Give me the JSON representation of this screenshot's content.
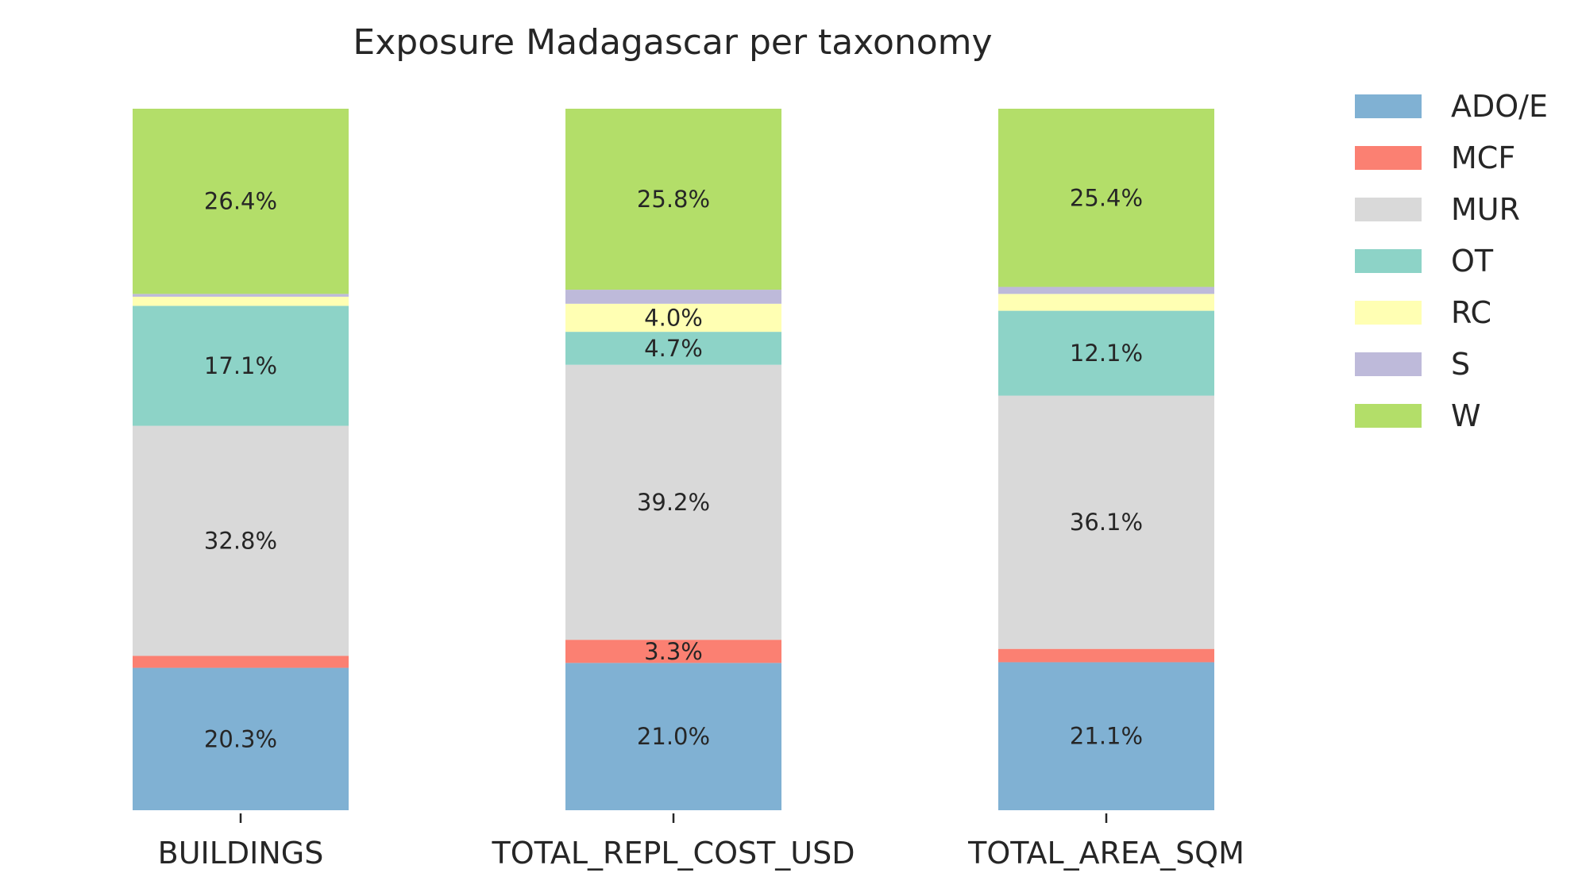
{
  "chart_data": {
    "type": "bar",
    "stacked": true,
    "normalized": true,
    "title": "Exposure Madagascar per taxonomy",
    "xlabel": "",
    "ylabel": "",
    "ylim": [
      0,
      100
    ],
    "grid": false,
    "legend_position": "right",
    "categories": [
      "BUILDINGS",
      "TOTAL_REPL_COST_USD",
      "TOTAL_AREA_SQM"
    ],
    "series": [
      {
        "name": "ADO/E",
        "color": "#80b1d3",
        "values": [
          20.3,
          21.0,
          21.1
        ],
        "labels": [
          "20.3%",
          "21.0%",
          "21.1%"
        ]
      },
      {
        "name": "MCF",
        "color": "#fb8072",
        "values": [
          1.7,
          3.3,
          1.9
        ],
        "labels": [
          "",
          "3.3%",
          ""
        ]
      },
      {
        "name": "MUR",
        "color": "#d9d9d9",
        "values": [
          32.8,
          39.2,
          36.1
        ],
        "labels": [
          "32.8%",
          "39.2%",
          "36.1%"
        ]
      },
      {
        "name": "OT",
        "color": "#8dd3c7",
        "values": [
          17.1,
          4.7,
          12.1
        ],
        "labels": [
          "17.1%",
          "4.7%",
          "12.1%"
        ]
      },
      {
        "name": "RC",
        "color": "#ffffb3",
        "values": [
          1.3,
          4.0,
          2.4
        ],
        "labels": [
          "",
          "4.0%",
          ""
        ]
      },
      {
        "name": "S",
        "color": "#bebada",
        "values": [
          0.4,
          2.0,
          1.0
        ],
        "labels": [
          "",
          "",
          ""
        ]
      },
      {
        "name": "W",
        "color": "#b3de69",
        "values": [
          26.4,
          25.8,
          25.4
        ],
        "labels": [
          "26.4%",
          "25.8%",
          "25.4%"
        ]
      }
    ]
  }
}
